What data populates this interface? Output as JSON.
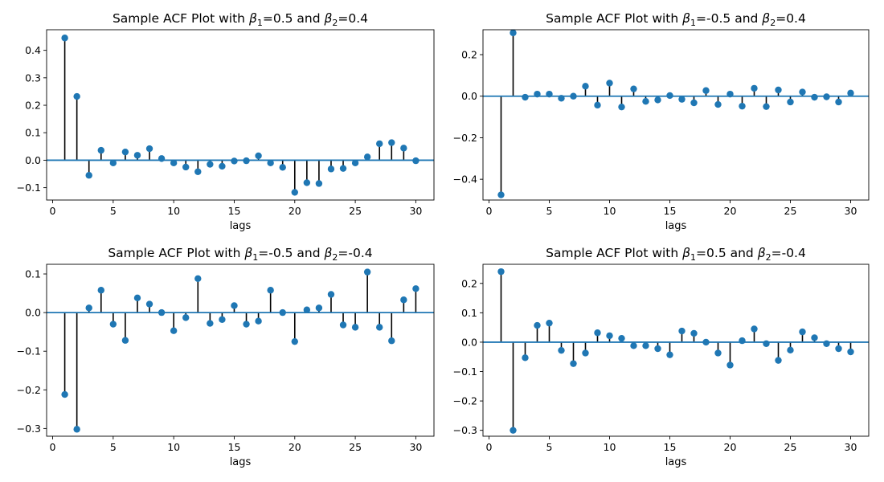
{
  "chart_data": [
    {
      "type": "stem",
      "title_parts": [
        "Sample ACF Plot with ",
        "β",
        "1",
        "=0.5 and ",
        "β",
        "2",
        "=0.4"
      ],
      "xlabel": "lags",
      "ylabel": "",
      "xlim": [
        -0.5,
        31.5
      ],
      "ylim": [
        -0.145,
        0.475
      ],
      "xticks": [
        0,
        5,
        10,
        15,
        20,
        25,
        30
      ],
      "yticks": [
        -0.1,
        0.0,
        0.1,
        0.2,
        0.3,
        0.4
      ],
      "ytick_labels": [
        "−0.1",
        "0.0",
        "0.1",
        "0.2",
        "0.3",
        "0.4"
      ],
      "grid": false,
      "baseline": 0,
      "x": [
        1,
        2,
        3,
        4,
        5,
        6,
        7,
        8,
        9,
        10,
        11,
        12,
        13,
        14,
        15,
        16,
        17,
        18,
        19,
        20,
        21,
        22,
        23,
        24,
        25,
        26,
        27,
        28,
        29,
        30
      ],
      "values": [
        0.445,
        0.232,
        -0.055,
        0.036,
        -0.01,
        0.03,
        0.018,
        0.042,
        0.006,
        -0.01,
        -0.025,
        -0.042,
        -0.015,
        -0.022,
        -0.003,
        -0.002,
        0.016,
        -0.01,
        -0.026,
        -0.117,
        -0.082,
        -0.085,
        -0.032,
        -0.03,
        -0.01,
        0.012,
        0.06,
        0.064,
        0.044,
        -0.002
      ]
    },
    {
      "type": "stem",
      "title_parts": [
        "Sample ACF Plot with ",
        "β",
        "1",
        "=-0.5 and ",
        "β",
        "2",
        "=0.4"
      ],
      "xlabel": "lags",
      "ylabel": "",
      "xlim": [
        -0.5,
        31.5
      ],
      "ylim": [
        -0.5,
        0.32
      ],
      "xticks": [
        0,
        5,
        10,
        15,
        20,
        25,
        30
      ],
      "yticks": [
        -0.4,
        -0.2,
        0.0,
        0.2
      ],
      "ytick_labels": [
        "−0.4",
        "−0.2",
        "0.0",
        "0.2"
      ],
      "grid": false,
      "baseline": 0,
      "x": [
        1,
        2,
        3,
        4,
        5,
        6,
        7,
        8,
        9,
        10,
        11,
        12,
        13,
        14,
        15,
        16,
        17,
        18,
        19,
        20,
        21,
        22,
        23,
        24,
        25,
        26,
        27,
        28,
        29,
        30
      ],
      "values": [
        -0.475,
        0.305,
        -0.005,
        0.01,
        0.01,
        -0.01,
        0.0,
        0.048,
        -0.043,
        0.063,
        -0.052,
        0.035,
        -0.025,
        -0.018,
        0.003,
        -0.015,
        -0.032,
        0.027,
        -0.04,
        0.01,
        -0.048,
        0.038,
        -0.05,
        0.03,
        -0.028,
        0.02,
        -0.005,
        -0.003,
        -0.028,
        0.015
      ]
    },
    {
      "type": "stem",
      "title_parts": [
        "Sample ACF Plot with ",
        "β",
        "1",
        "=-0.5 and ",
        "β",
        "2",
        "=-0.4"
      ],
      "xlabel": "lags",
      "ylabel": "",
      "xlim": [
        -0.5,
        31.5
      ],
      "ylim": [
        -0.32,
        0.125
      ],
      "xticks": [
        0,
        5,
        10,
        15,
        20,
        25,
        30
      ],
      "yticks": [
        -0.3,
        -0.2,
        -0.1,
        0.0,
        0.1
      ],
      "ytick_labels": [
        "−0.3",
        "−0.2",
        "−0.1",
        "0.0",
        "0.1"
      ],
      "grid": false,
      "baseline": 0,
      "x": [
        1,
        2,
        3,
        4,
        5,
        6,
        7,
        8,
        9,
        10,
        11,
        12,
        13,
        14,
        15,
        16,
        17,
        18,
        19,
        20,
        21,
        22,
        23,
        24,
        25,
        26,
        27,
        28,
        29,
        30
      ],
      "values": [
        -0.212,
        -0.302,
        0.012,
        0.058,
        -0.03,
        -0.072,
        0.038,
        0.022,
        0.0,
        -0.047,
        -0.013,
        0.088,
        -0.028,
        -0.018,
        0.018,
        -0.03,
        -0.022,
        0.058,
        0.0,
        -0.075,
        0.007,
        0.012,
        0.047,
        -0.032,
        -0.038,
        0.105,
        -0.038,
        -0.073,
        0.033,
        0.062
      ]
    },
    {
      "type": "stem",
      "title_parts": [
        "Sample ACF Plot with ",
        "β",
        "1",
        "=0.5 and ",
        "β",
        "2",
        "=-0.4"
      ],
      "xlabel": "lags",
      "ylabel": "",
      "xlim": [
        -0.5,
        31.5
      ],
      "ylim": [
        -0.32,
        0.265
      ],
      "xticks": [
        0,
        5,
        10,
        15,
        20,
        25,
        30
      ],
      "yticks": [
        -0.3,
        -0.2,
        -0.1,
        0.0,
        0.1,
        0.2
      ],
      "ytick_labels": [
        "−0.3",
        "−0.2",
        "−0.1",
        "0.0",
        "0.1",
        "0.2"
      ],
      "grid": false,
      "baseline": 0,
      "x": [
        1,
        2,
        3,
        4,
        5,
        6,
        7,
        8,
        9,
        10,
        11,
        12,
        13,
        14,
        15,
        16,
        17,
        18,
        19,
        20,
        21,
        22,
        23,
        24,
        25,
        26,
        27,
        28,
        29,
        30
      ],
      "values": [
        0.24,
        -0.3,
        -0.053,
        0.057,
        0.065,
        -0.028,
        -0.073,
        -0.037,
        0.032,
        0.022,
        0.013,
        -0.012,
        -0.012,
        -0.022,
        -0.043,
        0.038,
        0.03,
        0.0,
        -0.037,
        -0.078,
        0.005,
        0.045,
        -0.005,
        -0.062,
        -0.027,
        0.035,
        0.015,
        -0.005,
        -0.022,
        -0.033
      ]
    }
  ],
  "colors": {
    "marker": "#1f77b4",
    "stem": "#000000",
    "baseline": "#1f77b4",
    "axes": "#000000",
    "background": "#ffffff"
  }
}
